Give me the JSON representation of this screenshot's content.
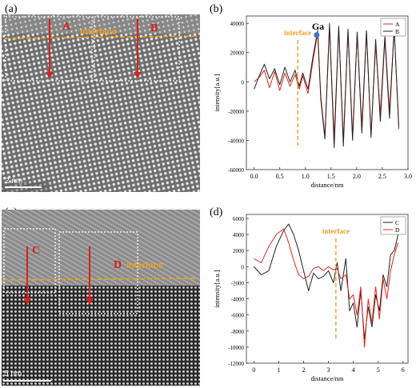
{
  "panels": {
    "a": {
      "label": "(a)",
      "region_a": "A",
      "region_b": "B",
      "interface": "interface",
      "scalebar": "2 nm"
    },
    "b": {
      "label": "(b)"
    },
    "c": {
      "label": "(c)",
      "region_c": "C",
      "region_d": "D",
      "interface": "interface",
      "scalebar": "5 nm"
    },
    "d": {
      "label": "(d)"
    }
  },
  "colors": {
    "arrow_red": "#d81f1f",
    "interface_orange": "#f0a020",
    "series_red": "#e0281e",
    "series_black": "#222222",
    "ga_marker": "#3a6fd8"
  },
  "chart_data": [
    {
      "type": "line",
      "panel": "b",
      "xlabel": "distance/nm",
      "ylabel": "intensity[a.u.]",
      "xlim": [
        -0.15,
        3.0
      ],
      "ylim": [
        -60000,
        45000
      ],
      "xticks": [
        0.0,
        0.5,
        1.0,
        1.5,
        2.0,
        2.5,
        3.0
      ],
      "xtick_labels": [
        "0.0",
        "0.5",
        "1.0",
        "1.5",
        "2.0",
        "2.5",
        "3.0"
      ],
      "yticks": [
        -60000,
        -40000,
        -20000,
        0,
        20000,
        40000
      ],
      "ytick_labels": [
        "-60000",
        "-40000",
        "-20000",
        "0",
        "20000",
        "40000"
      ],
      "legend_position": "top-right",
      "interface_x": 0.85,
      "interface_label": "interface",
      "annotation": {
        "text": "Ga",
        "x": 1.22,
        "y": 32000
      },
      "series": [
        {
          "name": "A",
          "color": "#e0281e",
          "x": [
            0.0,
            0.1,
            0.2,
            0.3,
            0.4,
            0.5,
            0.6,
            0.7,
            0.8,
            0.88,
            0.95,
            1.05,
            1.15,
            1.24,
            1.3,
            1.38,
            1.47,
            1.56,
            1.65,
            1.74,
            1.83,
            1.92,
            2.01,
            2.1,
            2.19,
            2.28,
            2.37,
            2.46,
            2.55,
            2.64,
            2.73,
            2.82
          ],
          "y": [
            0,
            3000,
            8000,
            -4000,
            7000,
            -6000,
            6000,
            -3000,
            5000,
            -5000,
            4000,
            -8000,
            15000,
            33000,
            -10000,
            -37000,
            37000,
            -38000,
            37000,
            -40000,
            35000,
            -37000,
            33000,
            -30000,
            34000,
            -36000,
            25000,
            -22000,
            32000,
            -20000,
            36000,
            -30000
          ]
        },
        {
          "name": "B",
          "color": "#222222",
          "x": [
            0.0,
            0.1,
            0.2,
            0.3,
            0.4,
            0.5,
            0.6,
            0.7,
            0.8,
            0.88,
            0.95,
            1.05,
            1.15,
            1.24,
            1.3,
            1.38,
            1.47,
            1.56,
            1.65,
            1.74,
            1.83,
            1.92,
            2.01,
            2.1,
            2.19,
            2.28,
            2.37,
            2.46,
            2.55,
            2.64,
            2.73,
            2.82
          ],
          "y": [
            -5000,
            4000,
            12000,
            2000,
            9000,
            -2000,
            10000,
            0,
            8000,
            -3000,
            6000,
            -5000,
            18000,
            35000,
            -12000,
            -39000,
            40000,
            -45000,
            38000,
            -44000,
            36000,
            -40000,
            34000,
            -35000,
            35000,
            -38000,
            29000,
            -27000,
            30000,
            -25000,
            37000,
            -32000
          ]
        }
      ]
    },
    {
      "type": "line",
      "panel": "d",
      "xlabel": "distance/nm",
      "ylabel": "intensity[a.u.]",
      "xlim": [
        -0.3,
        6.2
      ],
      "ylim": [
        -12000,
        6500
      ],
      "xticks": [
        0,
        1,
        2,
        3,
        4,
        5,
        6
      ],
      "xtick_labels": [
        "0",
        "1",
        "2",
        "3",
        "4",
        "5",
        "6"
      ],
      "yticks": [
        -12000,
        -10000,
        -8000,
        -6000,
        -4000,
        -2000,
        0,
        2000,
        4000,
        6000
      ],
      "ytick_labels": [
        "-12000",
        "-10000",
        "-8000",
        "-6000",
        "-4000",
        "-2000",
        "0",
        "2000",
        "4000",
        "6000"
      ],
      "legend_position": "top-right",
      "interface_x": 3.3,
      "interface_label": "interface",
      "series": [
        {
          "name": "C",
          "color": "#222222",
          "x": [
            0.0,
            0.3,
            0.6,
            0.9,
            1.2,
            1.4,
            1.6,
            1.8,
            2.0,
            2.2,
            2.4,
            2.6,
            2.8,
            3.0,
            3.2,
            3.35,
            3.5,
            3.7,
            3.85,
            4.0,
            4.15,
            4.3,
            4.45,
            4.6,
            4.75,
            4.9,
            5.05,
            5.2,
            5.35,
            5.5,
            5.65,
            5.8
          ],
          "y": [
            0,
            -1000,
            -500,
            2500,
            4500,
            5300,
            4000,
            2000,
            -500,
            -3000,
            -800,
            -1500,
            -1200,
            -500,
            -2000,
            500,
            -3000,
            1000,
            -5500,
            -4500,
            -7500,
            -3000,
            -9000,
            -5000,
            -7500,
            -3500,
            -5500,
            -1000,
            -2500,
            1500,
            2000,
            4000
          ]
        },
        {
          "name": "D",
          "color": "#e0281e",
          "x": [
            0.0,
            0.3,
            0.6,
            0.9,
            1.2,
            1.4,
            1.6,
            1.8,
            2.0,
            2.2,
            2.4,
            2.6,
            2.8,
            3.0,
            3.2,
            3.35,
            3.5,
            3.7,
            3.85,
            4.0,
            4.15,
            4.3,
            4.45,
            4.6,
            4.75,
            4.9,
            5.05,
            5.2,
            5.35,
            5.5,
            5.65,
            5.8
          ],
          "y": [
            1000,
            500,
            2500,
            4000,
            4700,
            3000,
            800,
            -1000,
            -1500,
            -1200,
            -200,
            0,
            -500,
            0,
            -400,
            -200,
            -1500,
            -1000,
            -4000,
            -3500,
            -6000,
            -2500,
            -10000,
            -4000,
            -7000,
            -2500,
            -6500,
            -1500,
            -4000,
            -500,
            1500,
            3000
          ]
        }
      ]
    }
  ]
}
